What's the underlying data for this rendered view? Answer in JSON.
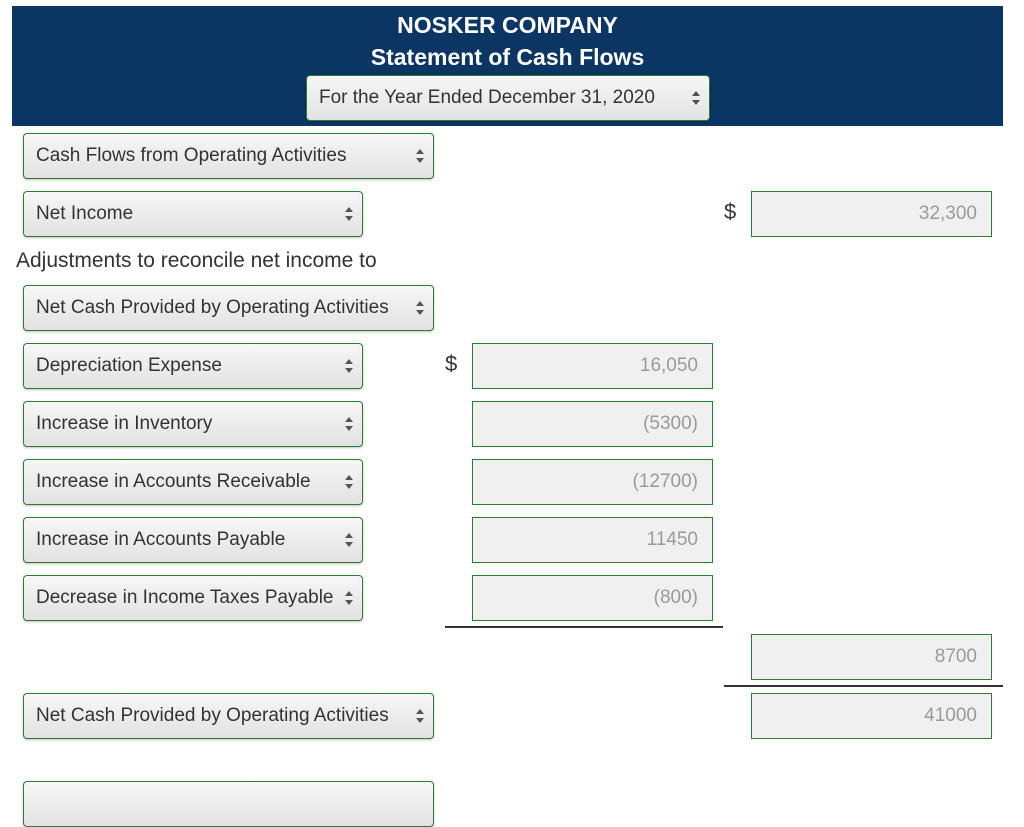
{
  "header": {
    "company": "NOSKER COMPANY",
    "statement": "Statement of Cash Flows",
    "period": "For the Year Ended December 31, 2020"
  },
  "operating": {
    "section_label": "Cash Flows from Operating Activities",
    "net_income_label": "Net Income",
    "net_income_value": "32,300",
    "adjustments_text": "Adjustments to reconcile net income to",
    "adjustments_select": "Net Cash Provided by Operating Activities",
    "dollar_sign": "$",
    "adjustments": [
      {
        "label": "Depreciation Expense",
        "value": "16,050"
      },
      {
        "label": "Increase in Inventory",
        "value": "(5300)"
      },
      {
        "label": "Increase in Accounts Receivable",
        "value": "(12700)"
      },
      {
        "label": "Increase in Accounts Payable",
        "value": "11450"
      },
      {
        "label": "Decrease in Income Taxes Payable",
        "value": "(800)"
      }
    ],
    "total_adjustments": "8700",
    "net_cash_label": "Net Cash Provided by Operating Activities",
    "net_cash_value": "41000"
  },
  "colors": {
    "header_bg": "#0b3562",
    "border_green": "#2f7a34",
    "value_gray": "#9a9a9a"
  },
  "icons": {
    "select_caret": "updown-caret-icon"
  }
}
